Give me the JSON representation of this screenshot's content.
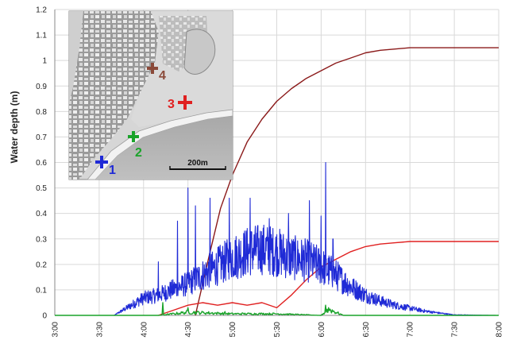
{
  "chart_data": {
    "type": "line",
    "xlabel": "",
    "ylabel": "Water depth (m)",
    "ylim": [
      0,
      1.2
    ],
    "yticks": [
      0,
      0.1,
      0.2,
      0.3,
      0.4,
      0.5,
      0.6,
      0.7,
      0.8,
      0.9,
      1.0,
      1.1,
      1.2
    ],
    "ytick_labels": [
      "0",
      "0.1",
      "0.2",
      "0.3",
      "0.4",
      "0.5",
      "0.6",
      "0.7",
      "0.8",
      "0.9",
      "1",
      "1.1",
      "1.2"
    ],
    "xlim": [
      "3:00",
      "8:00"
    ],
    "xticks": [
      "3:00",
      "3:30",
      "4:00",
      "4:30",
      "5:00",
      "5:30",
      "6:00",
      "6:30",
      "7:00",
      "7:30",
      "8:00"
    ],
    "grid": true,
    "series": [
      {
        "name": "",
        "color": "#8b1a1a",
        "x": [
          "4:35",
          "4:45",
          "4:52",
          "5:00",
          "5:10",
          "5:20",
          "5:30",
          "5:40",
          "5:50",
          "6:00",
          "6:10",
          "6:20",
          "6:30",
          "6:40",
          "6:50",
          "7:00",
          "7:10",
          "7:30",
          "8:00"
        ],
        "values": [
          0.0,
          0.25,
          0.42,
          0.55,
          0.68,
          0.77,
          0.84,
          0.89,
          0.93,
          0.96,
          0.99,
          1.01,
          1.03,
          1.04,
          1.045,
          1.05,
          1.05,
          1.05,
          1.05
        ]
      },
      {
        "name": "",
        "color": "#e02020",
        "x": [
          "4:10",
          "4:20",
          "4:30",
          "4:40",
          "4:50",
          "5:00",
          "5:10",
          "5:20",
          "5:30",
          "5:40",
          "5:50",
          "6:00",
          "6:10",
          "6:20",
          "6:30",
          "6:40",
          "6:50",
          "7:00",
          "7:30",
          "8:00"
        ],
        "values": [
          0.0,
          0.02,
          0.04,
          0.05,
          0.04,
          0.05,
          0.04,
          0.05,
          0.03,
          0.08,
          0.14,
          0.19,
          0.22,
          0.25,
          0.27,
          0.28,
          0.285,
          0.29,
          0.29,
          0.29
        ]
      },
      {
        "name": "",
        "color": "#1f2ad6",
        "x": [
          "3:00",
          "3:40",
          "3:50",
          "4:00",
          "4:10",
          "4:20",
          "4:30",
          "4:40",
          "4:50",
          "5:00",
          "5:10",
          "5:20",
          "5:30",
          "5:40",
          "5:50",
          "6:00",
          "6:10",
          "6:20",
          "6:30",
          "6:40",
          "6:50",
          "7:00",
          "7:10",
          "7:20",
          "7:30",
          "8:00"
        ],
        "values": [
          0.0,
          0.0,
          0.03,
          0.06,
          0.07,
          0.09,
          0.11,
          0.14,
          0.17,
          0.2,
          0.22,
          0.23,
          0.22,
          0.2,
          0.19,
          0.17,
          0.14,
          0.1,
          0.07,
          0.05,
          0.035,
          0.025,
          0.015,
          0.008,
          0.002,
          0.0
        ],
        "peaks": [
          [
            "4:10",
            0.21
          ],
          [
            "4:23",
            0.37
          ],
          [
            "4:30",
            0.5
          ],
          [
            "4:35",
            0.43
          ],
          [
            "4:45",
            0.46
          ],
          [
            "4:58",
            0.46
          ],
          [
            "5:12",
            0.46
          ],
          [
            "5:25",
            0.38
          ],
          [
            "5:38",
            0.4
          ],
          [
            "5:52",
            0.45
          ],
          [
            "6:00",
            0.39
          ],
          [
            "6:03",
            0.6
          ],
          [
            "6:08",
            0.3
          ]
        ]
      },
      {
        "name": "",
        "color": "#1aa32a",
        "x": [
          "3:00",
          "4:10",
          "4:30",
          "5:00",
          "5:30",
          "6:00",
          "6:05",
          "6:15",
          "8:00"
        ],
        "values": [
          0.0,
          0.0,
          0.01,
          0.005,
          0.005,
          0.0,
          0.02,
          0.0,
          0.0
        ],
        "peaks": [
          [
            "4:13",
            0.05
          ],
          [
            "4:30",
            0.03
          ],
          [
            "4:55",
            0.015
          ],
          [
            "6:03",
            0.04
          ]
        ]
      }
    ],
    "inset_map": {
      "markers": [
        {
          "label": "1",
          "color": "#1f2ad6"
        },
        {
          "label": "2",
          "color": "#1aa32a"
        },
        {
          "label": "3",
          "color": "#e02020"
        },
        {
          "label": "4",
          "color": "#8b4a3a"
        }
      ],
      "scale_label": "200m"
    }
  }
}
